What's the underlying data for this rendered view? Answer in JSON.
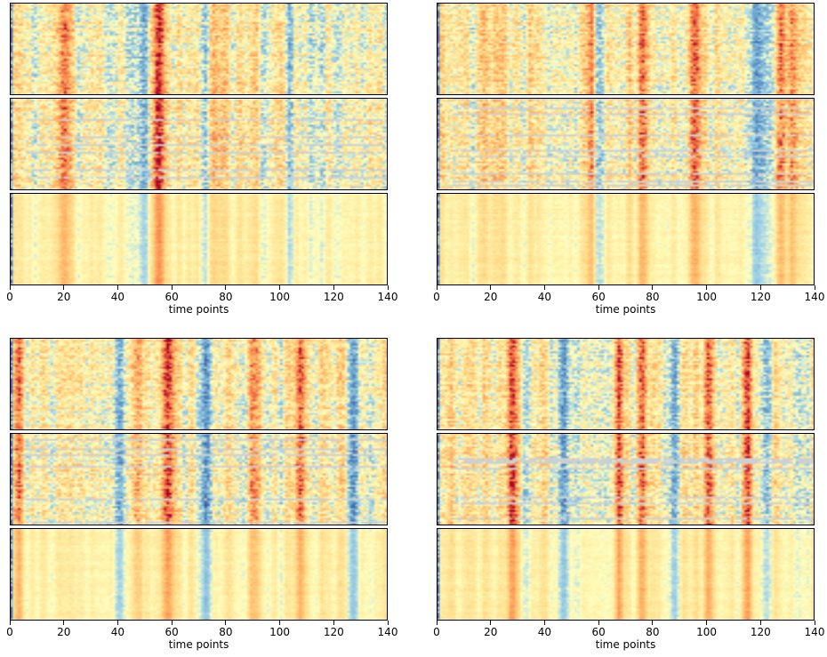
{
  "chart_data": [
    {
      "type": "heatmap",
      "subplots": 3,
      "colormap": "RdYlBu_r",
      "xlabel": "time points",
      "xlim": [
        0,
        140
      ],
      "xticks": [
        "0",
        "20",
        "40",
        "60",
        "80",
        "100",
        "120",
        "140"
      ],
      "strong_columns": [
        20,
        50,
        53,
        56,
        72,
        75,
        101,
        103
      ]
    },
    {
      "type": "heatmap",
      "subplots": 3,
      "colormap": "RdYlBu_r",
      "xlabel": "time points",
      "xlim": [
        0,
        140
      ],
      "xticks": [
        "0",
        "20",
        "40",
        "60",
        "80",
        "100",
        "120",
        "140"
      ],
      "strong_columns": [
        57,
        60,
        76,
        95,
        118,
        127,
        131
      ]
    },
    {
      "type": "heatmap",
      "subplots": 3,
      "colormap": "RdYlBu_r",
      "xlabel": "time points",
      "xlim": [
        0,
        140
      ],
      "xticks": [
        "0",
        "20",
        "40",
        "60",
        "80",
        "100",
        "120",
        "140"
      ],
      "strong_columns": [
        3,
        40,
        46,
        58,
        72,
        90,
        107,
        127
      ]
    },
    {
      "type": "heatmap",
      "subplots": 3,
      "colormap": "RdYlBu_r",
      "xlabel": "time points",
      "xlim": [
        0,
        140
      ],
      "xticks": [
        "0",
        "20",
        "40",
        "60",
        "80",
        "100",
        "120",
        "140"
      ],
      "strong_columns": [
        28,
        47,
        67,
        76,
        87,
        100,
        115,
        121
      ]
    }
  ]
}
